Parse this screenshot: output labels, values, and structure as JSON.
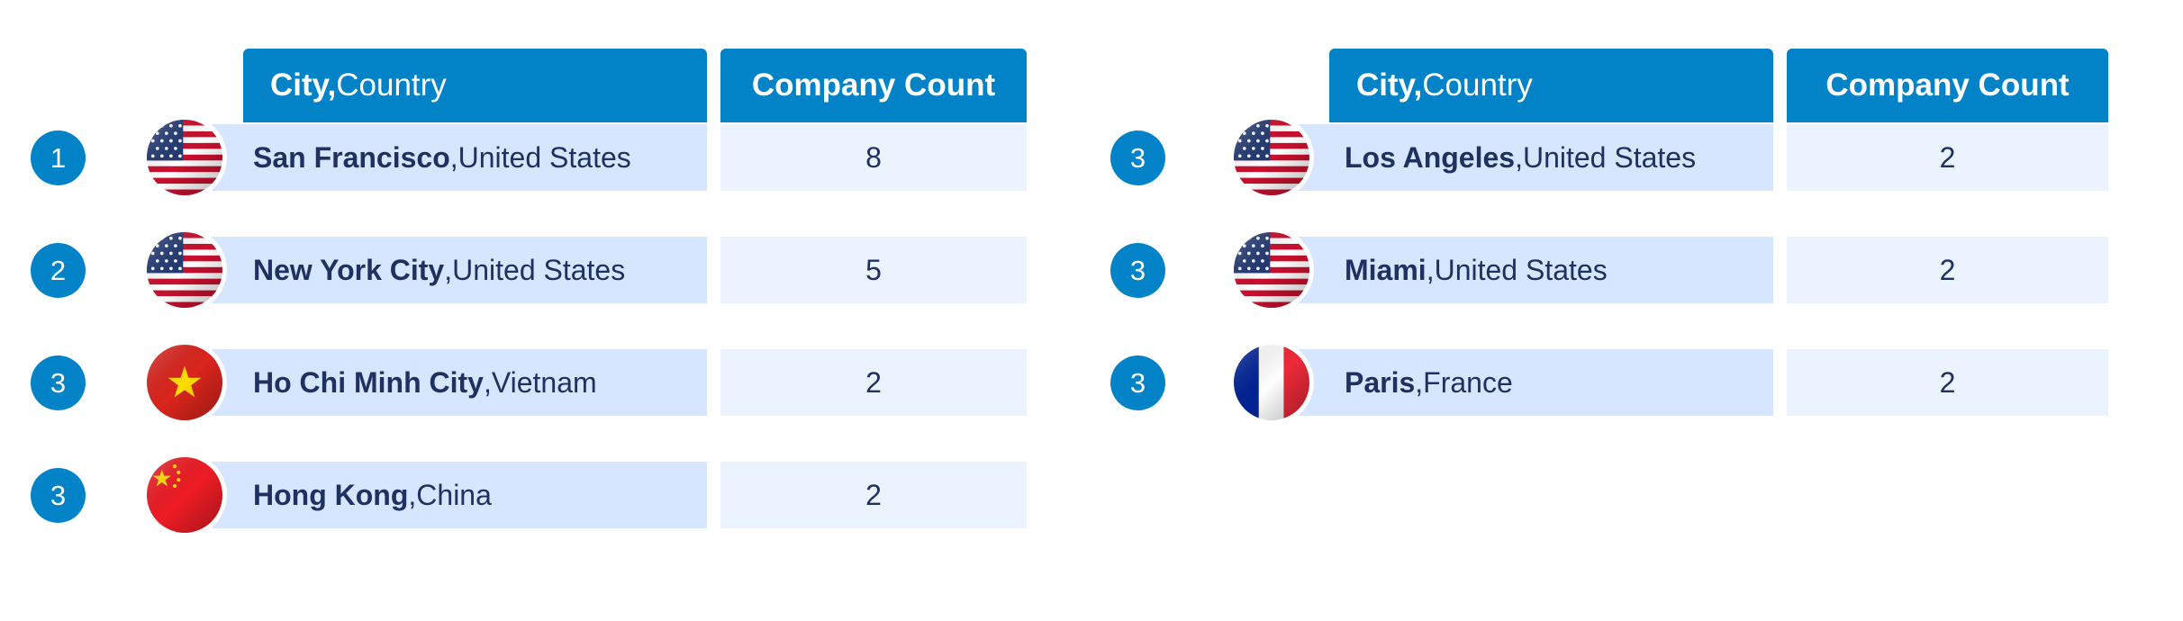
{
  "header": {
    "city_bold": "City,",
    "city_rest": " Country",
    "count_label": "Company Count"
  },
  "colors": {
    "accent": "#0283c7",
    "city_cell": "#d5e6fe",
    "count_cell": "#ebf3fe",
    "text": "#1f3160"
  },
  "chart_data": {
    "type": "table",
    "columns": [
      "City, Country",
      "Company Count"
    ],
    "rows": [
      {
        "rank": "1",
        "city": "San Francisco",
        "country": "United States",
        "count": "8",
        "flag": "us-flag"
      },
      {
        "rank": "2",
        "city": "New York City",
        "country": "United States",
        "count": "5",
        "flag": "us-flag"
      },
      {
        "rank": "3",
        "city": "Ho Chi Minh City",
        "country": "Vietnam",
        "count": "2",
        "flag": "vietnam-flag"
      },
      {
        "rank": "3",
        "city": "Hong Kong",
        "country": "China",
        "count": "2",
        "flag": "china-flag"
      },
      {
        "rank": "3",
        "city": "Los Angeles",
        "country": "United States",
        "count": "2",
        "flag": "us-flag"
      },
      {
        "rank": "3",
        "city": "Miami",
        "country": "United States",
        "count": "2",
        "flag": "us-flag"
      },
      {
        "rank": "3",
        "city": "Paris",
        "country": "France",
        "count": "2",
        "flag": "france-flag"
      }
    ]
  }
}
